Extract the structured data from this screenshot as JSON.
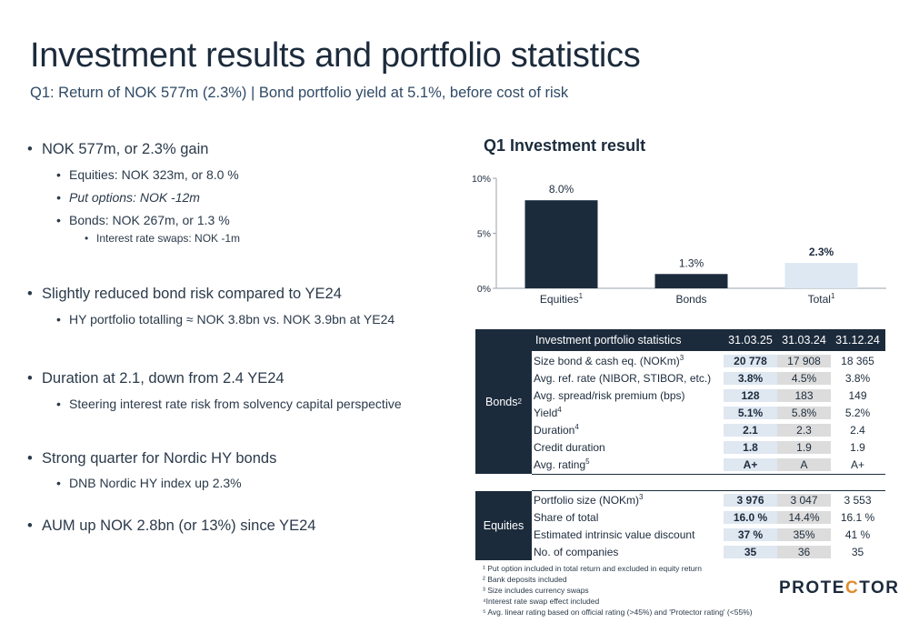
{
  "title": "Investment results and portfolio statistics",
  "subtitle": "Q1: Return of NOK 577m (2.3%) | Bond portfolio yield at 5.1%, before cost of risk",
  "bullets": {
    "b1": "NOK 577m, or 2.3%  gain",
    "b1a": "Equities: NOK 323m, or 8.0 %",
    "b1b": "Put options: NOK -12m",
    "b1c": "Bonds: NOK 267m, or 1.3 %",
    "b1c1": "Interest rate swaps: NOK -1m",
    "b2": "Slightly reduced bond risk compared to YE24",
    "b2a": "HY portfolio totalling ≈ NOK 3.8bn vs. NOK 3.9bn at YE24",
    "b3": "Duration at 2.1, down from 2.4 YE24",
    "b3a": "Steering interest rate risk from solvency capital perspective",
    "b4": "Strong quarter for Nordic HY bonds",
    "b4a": "DNB Nordic HY index up 2.3%",
    "b5": "AUM up NOK 2.8bn (or 13%) since YE24"
  },
  "chart_title": "Q1 Investment result",
  "chart_data": {
    "type": "bar",
    "categories": [
      "Equities",
      "Bonds",
      "Total"
    ],
    "category_sups": [
      "1",
      "",
      "1"
    ],
    "values": [
      8.0,
      1.3,
      2.3
    ],
    "data_labels": [
      "8.0%",
      "1.3%",
      "2.3%"
    ],
    "yticks": [
      "0%",
      "5%",
      "10%"
    ],
    "ylim": [
      0,
      10
    ],
    "colors": [
      "#1c2b3c",
      "#1c2b3c",
      "#dde8f3"
    ],
    "title": "Q1 Investment result"
  },
  "table": {
    "header": {
      "label": "Investment portfolio statistics",
      "col1": "31.03.25",
      "col2": "31.03.24",
      "col3": "31.12.24"
    },
    "bonds_label": "Bonds",
    "bonds_sup": "2",
    "bonds_rows": [
      {
        "label": "Size bond & cash eq. (NOKm)",
        "sup": "3",
        "v1": "20 778",
        "v2": "17 908",
        "v3": "18 365"
      },
      {
        "label": "Avg. ref. rate (NIBOR, STIBOR, etc.)",
        "sup": "",
        "v1": "3.8%",
        "v2": "4.5%",
        "v3": "3.8%"
      },
      {
        "label": "Avg. spread/risk premium (bps)",
        "sup": "",
        "v1": "128",
        "v2": "183",
        "v3": "149"
      },
      {
        "label": "Yield",
        "sup": "4",
        "v1": "5.1%",
        "v2": "5.8%",
        "v3": "5.2%"
      },
      {
        "label": "Duration",
        "sup": "4",
        "v1": "2.1",
        "v2": "2.3",
        "v3": "2.4"
      },
      {
        "label": "Credit duration",
        "sup": "",
        "v1": "1.8",
        "v2": "1.9",
        "v3": "1.9"
      },
      {
        "label": "Avg. rating",
        "sup": "5",
        "v1": "A+",
        "v2": "A",
        "v3": "A+"
      }
    ],
    "equities_label": "Equities",
    "equities_rows": [
      {
        "label": "Portfolio size (NOKm)",
        "sup": "3",
        "v1": "3 976",
        "v2": "3 047",
        "v3": "3 553"
      },
      {
        "label": "Share of total",
        "sup": "",
        "v1": "16.0 %",
        "v2": "14.4%",
        "v3": "16.1 %"
      },
      {
        "label": "Estimated intrinsic value discount",
        "sup": "",
        "v1": "37 %",
        "v2": "35%",
        "v3": "41 %"
      },
      {
        "label": "No. of companies",
        "sup": "",
        "v1": "35",
        "v2": "36",
        "v3": "35"
      }
    ]
  },
  "footnotes": [
    "¹ Put option included in total return and excluded in equity return",
    "² Bank deposits included",
    "³ Size includes currency swaps",
    "⁴Interest rate swap effect included",
    "⁵ Avg. linear rating based on official rating (>45%) and 'Protector rating' (<55%)"
  ],
  "logo_text": "PROTECTOR",
  "logo_pre": "PROTE",
  "logo_dot": "C",
  "logo_post": "TOR",
  "colors": {
    "navy": "#1c2b3c",
    "accent": "#e08a2c",
    "light_blue": "#dde8f3"
  }
}
